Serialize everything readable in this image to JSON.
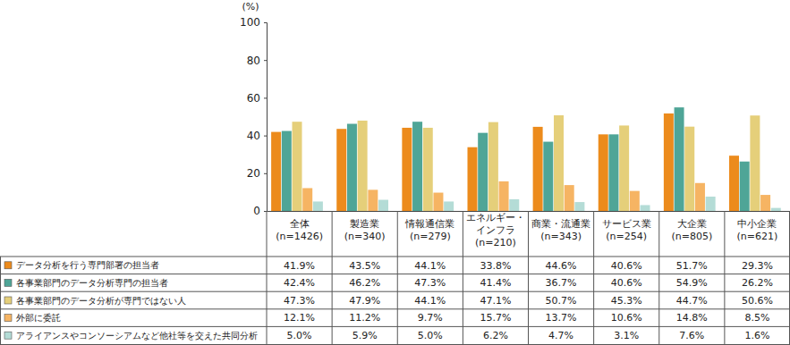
{
  "chart_data": {
    "type": "bar",
    "y_label": "(%)",
    "categories": [
      "全体\n(n=1426)",
      "製造業\n(n=340)",
      "情報通信業\n(n=279)",
      "エネルギー・\nインフラ\n(n=210)",
      "商業・流通業\n(n=343)",
      "サービス業\n(n=254)",
      "大企業\n(n=805)",
      "中小企業\n(n=621)"
    ],
    "series": [
      {
        "name": "データ分析を行う専門部署の担当者",
        "color": "#ec8b1c",
        "values": [
          41.9,
          43.5,
          44.1,
          33.8,
          44.6,
          40.6,
          51.7,
          29.3
        ],
        "value_labels": [
          "41.9%",
          "43.5%",
          "44.1%",
          "33.8%",
          "44.6%",
          "40.6%",
          "51.7%",
          "29.3%"
        ]
      },
      {
        "name": "各事業部門のデータ分析専門の担当者",
        "color": "#4fa597",
        "values": [
          42.4,
          46.2,
          47.3,
          41.4,
          36.7,
          40.6,
          54.9,
          26.2
        ],
        "value_labels": [
          "42.4%",
          "46.2%",
          "47.3%",
          "41.4%",
          "36.7%",
          "40.6%",
          "54.9%",
          "26.2%"
        ]
      },
      {
        "name": "各事業部門のデータ分析が専門ではない人",
        "color": "#e5cf7a",
        "values": [
          47.3,
          47.9,
          44.1,
          47.1,
          50.7,
          45.3,
          44.7,
          50.6
        ],
        "value_labels": [
          "47.3%",
          "47.9%",
          "44.1%",
          "47.1%",
          "50.7%",
          "45.3%",
          "44.7%",
          "50.6%"
        ]
      },
      {
        "name": "外部に委託",
        "color": "#f6b463",
        "values": [
          12.1,
          11.2,
          9.7,
          15.7,
          13.7,
          10.6,
          14.8,
          8.5
        ],
        "value_labels": [
          "12.1%",
          "11.2%",
          "9.7%",
          "15.7%",
          "13.7%",
          "10.6%",
          "14.8%",
          "8.5%"
        ]
      },
      {
        "name": "アライアンスやコンソーシアムなど他社等を交えた共同分析",
        "color": "#b4dcd6",
        "values": [
          5.0,
          5.9,
          5.0,
          6.2,
          4.7,
          3.1,
          7.6,
          1.6
        ],
        "value_labels": [
          "5.0%",
          "5.9%",
          "5.0%",
          "6.2%",
          "4.7%",
          "3.1%",
          "7.6%",
          "1.6%"
        ]
      }
    ],
    "ylim": [
      0,
      100
    ],
    "yticks": [
      0,
      20,
      40,
      60,
      80,
      100
    ],
    "grid": false
  }
}
